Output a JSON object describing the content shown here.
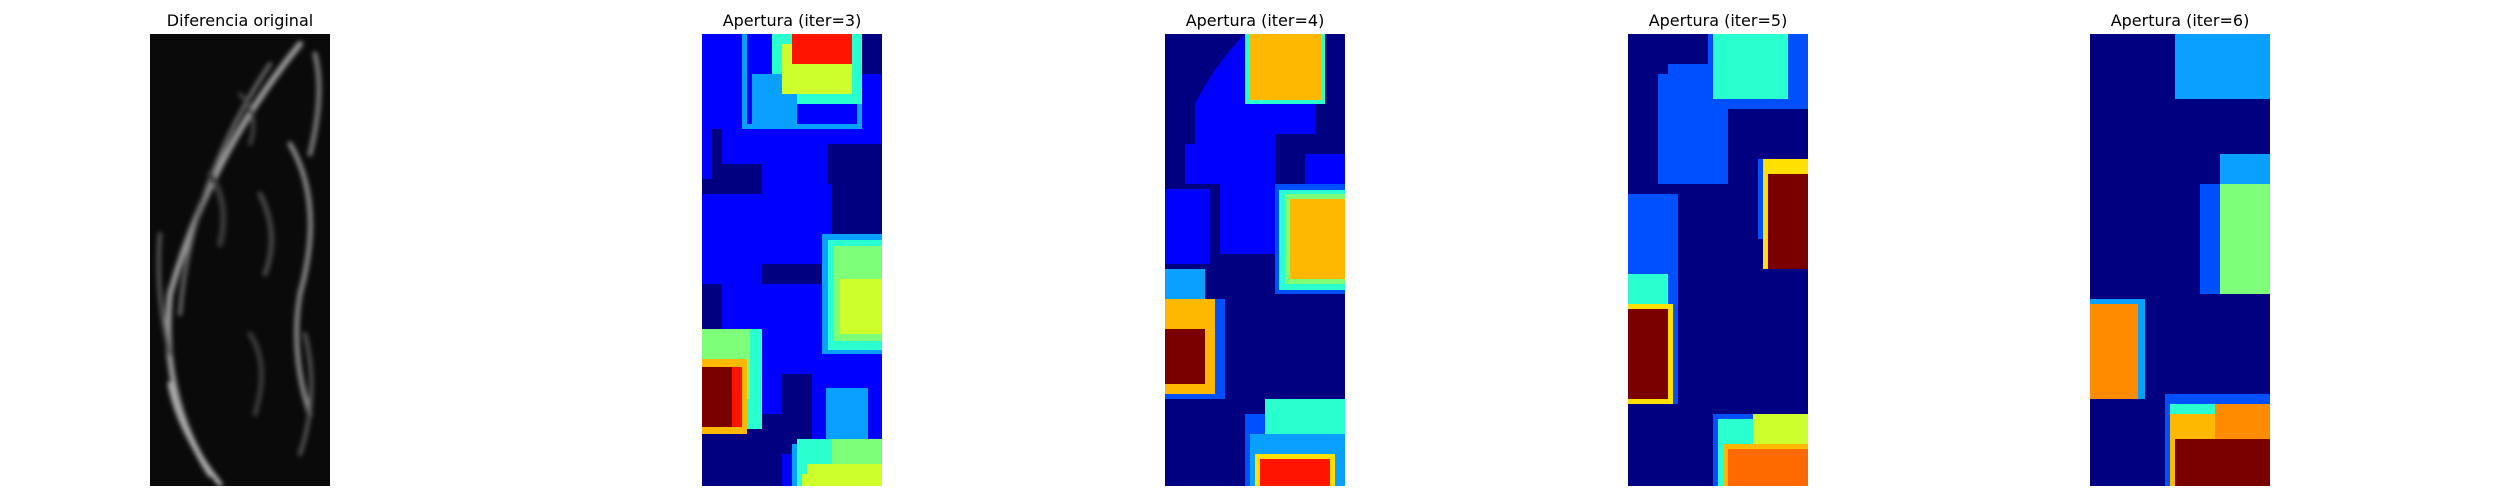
{
  "figure": {
    "panels": [
      {
        "id": "original",
        "title": "Diferencia original",
        "colormap": "gray"
      },
      {
        "id": "iter3",
        "title": "Apertura (iter=3)",
        "colormap": "jet"
      },
      {
        "id": "iter4",
        "title": "Apertura (iter=4)",
        "colormap": "jet"
      },
      {
        "id": "iter5",
        "title": "Apertura (iter=5)",
        "colormap": "jet"
      },
      {
        "id": "iter6",
        "title": "Apertura (iter=6)",
        "colormap": "jet"
      }
    ]
  },
  "colors": {
    "jet_dark_blue": "#000080",
    "jet_blue": "#0000ff",
    "jet_mid_blue": "#0050ff",
    "jet_azure": "#0aa0ff",
    "jet_cyan": "#2affd0",
    "jet_green": "#7dff7a",
    "jet_yellow_green": "#ccff2b",
    "jet_yellow": "#ffe000",
    "jet_orange": "#ffb800",
    "jet_dark_orange": "#ff6a00",
    "jet_red": "#ff1400",
    "jet_dark_red": "#7a0000"
  }
}
